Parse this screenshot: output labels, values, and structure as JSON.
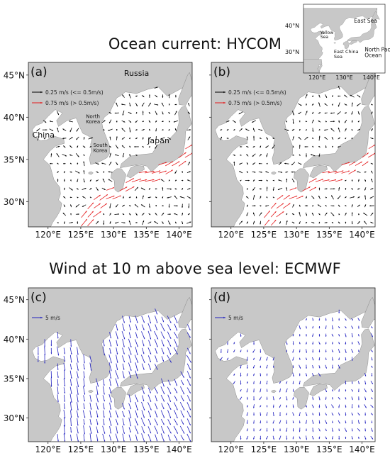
{
  "titles": {
    "ocean": "Ocean current: HYCOM",
    "wind": "Wind at 10 m above sea level: ECMWF"
  },
  "axes": {
    "lat_ticks": [
      "45°N",
      "40°N",
      "35°N",
      "30°N"
    ],
    "lon_ticks": [
      "120°E",
      "125°E",
      "130°E",
      "135°E",
      "140°E"
    ],
    "lat_values": [
      45,
      40,
      35,
      30
    ],
    "lon_values": [
      120,
      125,
      130,
      135,
      140
    ]
  },
  "panels": [
    {
      "label": "(a)",
      "kind": "current"
    },
    {
      "label": "(b)",
      "kind": "current"
    },
    {
      "label": "(c)",
      "kind": "wind"
    },
    {
      "label": "(d)",
      "kind": "wind"
    }
  ],
  "legends": {
    "current": [
      {
        "text": "0.25 m/s (<= 0.5m/s)",
        "color": "#000000"
      },
      {
        "text": "0.75 m/s (> 0.5m/s)",
        "color": "#e41a1c"
      }
    ],
    "wind": [
      {
        "text": "5 m/s",
        "color": "#1f1fbf"
      }
    ]
  },
  "place_labels": {
    "russia": "Russia",
    "china": "China",
    "north_korea": "North\nKorea",
    "south_korea": "South\nKorea",
    "japan": "Japan"
  },
  "inset": {
    "lat_label": "40°N",
    "lat_label2": "30°N",
    "lon_labels": [
      "120°E",
      "130°E",
      "140°E"
    ],
    "regions": [
      "East Sea",
      "Yellow\nSea",
      "East China\nSea",
      "North Pacific\nOcean"
    ]
  },
  "colors": {
    "land": "#c8c8c8",
    "ocean": "#ffffff",
    "current_slow": "#000000",
    "current_fast": "#e41a1c",
    "wind": "#1f1fbf"
  }
}
